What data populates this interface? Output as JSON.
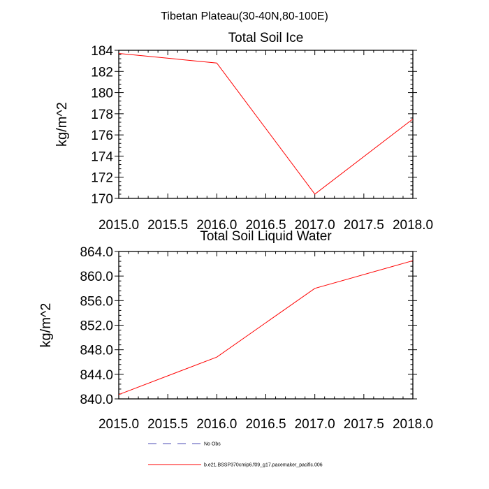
{
  "figure": {
    "title": "Tibetan Plateau(30-40N,80-100E)"
  },
  "chart_data": [
    {
      "type": "line",
      "title": "Total Soil Ice",
      "xlabel": "",
      "ylabel": "kg/m^2",
      "xlim": [
        2015.0,
        2018.0
      ],
      "ylim": [
        170,
        184
      ],
      "x_ticks": [
        2015.0,
        2015.5,
        2016.0,
        2016.5,
        2017.0,
        2017.5,
        2018.0
      ],
      "x_tick_labels": [
        "2015.0",
        "2015.5",
        "2016.0",
        "2016.5",
        "2017.0",
        "2017.5",
        "2018.0"
      ],
      "y_ticks": [
        170,
        172,
        174,
        176,
        178,
        180,
        182,
        184
      ],
      "y_tick_labels": [
        "170",
        "172",
        "174",
        "176",
        "178",
        "180",
        "182",
        "184"
      ],
      "grid": false,
      "series": [
        {
          "name": "b.e21.BSSP370cmip6.f09_g17.pacemaker_pacific.006",
          "color": "#ff0000",
          "x": [
            2015,
            2016,
            2017,
            2018
          ],
          "values": [
            183.7,
            182.8,
            170.4,
            177.5
          ]
        }
      ]
    },
    {
      "type": "line",
      "title": "Total Soil Liquid Water",
      "xlabel": "",
      "ylabel": "kg/m^2",
      "xlim": [
        2015.0,
        2018.0
      ],
      "ylim": [
        840.0,
        864.0
      ],
      "x_ticks": [
        2015.0,
        2015.5,
        2016.0,
        2016.5,
        2017.0,
        2017.5,
        2018.0
      ],
      "x_tick_labels": [
        "2015.0",
        "2015.5",
        "2016.0",
        "2016.5",
        "2017.0",
        "2017.5",
        "2018.0"
      ],
      "y_ticks": [
        840,
        844,
        848,
        852,
        856,
        860,
        864
      ],
      "y_tick_labels": [
        "840.0",
        "844.0",
        "848.0",
        "852.0",
        "856.0",
        "860.0",
        "864.0"
      ],
      "grid": false,
      "series": [
        {
          "name": "b.e21.BSSP370cmip6.f09_g17.pacemaker_pacific.006",
          "color": "#ff0000",
          "x": [
            2015,
            2016,
            2017,
            2018
          ],
          "values": [
            840.7,
            846.8,
            858.0,
            862.5
          ]
        }
      ]
    }
  ],
  "legend": {
    "placement": "bottom",
    "entries": [
      {
        "label": "No Obs",
        "color": "#4b4bb4",
        "style": "dashed"
      },
      {
        "label": "b.e21.BSSP370cmip6.f09_g17.pacemaker_pacific.006",
        "color": "#ff0000",
        "style": "solid"
      }
    ]
  }
}
